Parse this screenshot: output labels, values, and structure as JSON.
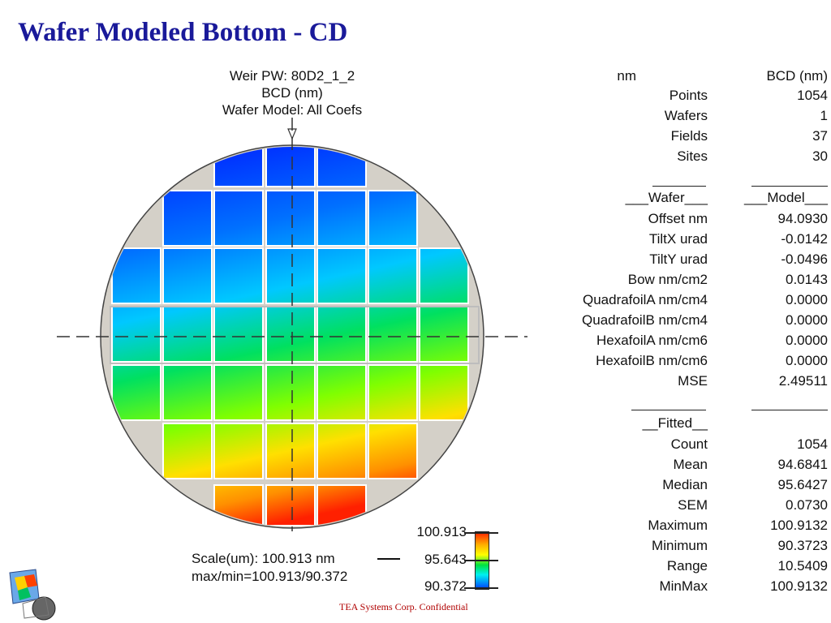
{
  "slide": {
    "title": "Wafer Modeled Bottom - CD",
    "footer": "TEA Systems Corp. Confidential"
  },
  "map": {
    "header_lines": [
      "Weir PW: 80D2_1_2",
      "BCD (nm)",
      "Wafer Model: All Coefs"
    ],
    "scale_line1": "Scale(um): 100.913 nm",
    "scale_line2": "max/min=100.913/90.372",
    "colorbar": {
      "max": "100.913",
      "mid": "95.643",
      "min": "90.372"
    },
    "colors": {
      "wafer_background": "#d4d0c8",
      "grid_line": "#ffffff",
      "scale_top": "#ff2000",
      "scale_bottom": "#0040ff"
    }
  },
  "stats": {
    "col_header_left": "nm",
    "col_header_right": "BCD (nm)",
    "summary": [
      {
        "label": "Points",
        "value": "1054"
      },
      {
        "label": "Wafers",
        "value": "1"
      },
      {
        "label": "Fields",
        "value": "37"
      },
      {
        "label": "Sites",
        "value": "30"
      }
    ],
    "model_header_left": "___Wafer___",
    "model_header_right": "___Model___",
    "model": [
      {
        "label": "Offset nm",
        "value": "94.0930"
      },
      {
        "label": "TiltX urad",
        "value": "-0.0142"
      },
      {
        "label": "TiltY urad",
        "value": "-0.0496"
      },
      {
        "label": "Bow nm/cm2",
        "value": "0.0143"
      },
      {
        "label": "QuadrafoilA nm/cm4",
        "value": "0.0000"
      },
      {
        "label": "QuadrafoilB nm/cm4",
        "value": "0.0000"
      },
      {
        "label": "HexafoilA nm/cm6",
        "value": "0.0000"
      },
      {
        "label": "HexafoilB nm/cm6",
        "value": "0.0000"
      },
      {
        "label": "MSE",
        "value": "2.49511"
      }
    ],
    "fitted_header": "__Fitted__",
    "fitted": [
      {
        "label": "Count",
        "value": "1054"
      },
      {
        "label": "Mean",
        "value": "94.6841"
      },
      {
        "label": "Median",
        "value": "95.6427"
      },
      {
        "label": "SEM",
        "value": "0.0730"
      },
      {
        "label": "Maximum",
        "value": "100.9132"
      },
      {
        "label": "Minimum",
        "value": "90.3723"
      },
      {
        "label": "Range",
        "value": "10.5409"
      },
      {
        "label": "MinMax",
        "value": "100.9132"
      }
    ]
  }
}
